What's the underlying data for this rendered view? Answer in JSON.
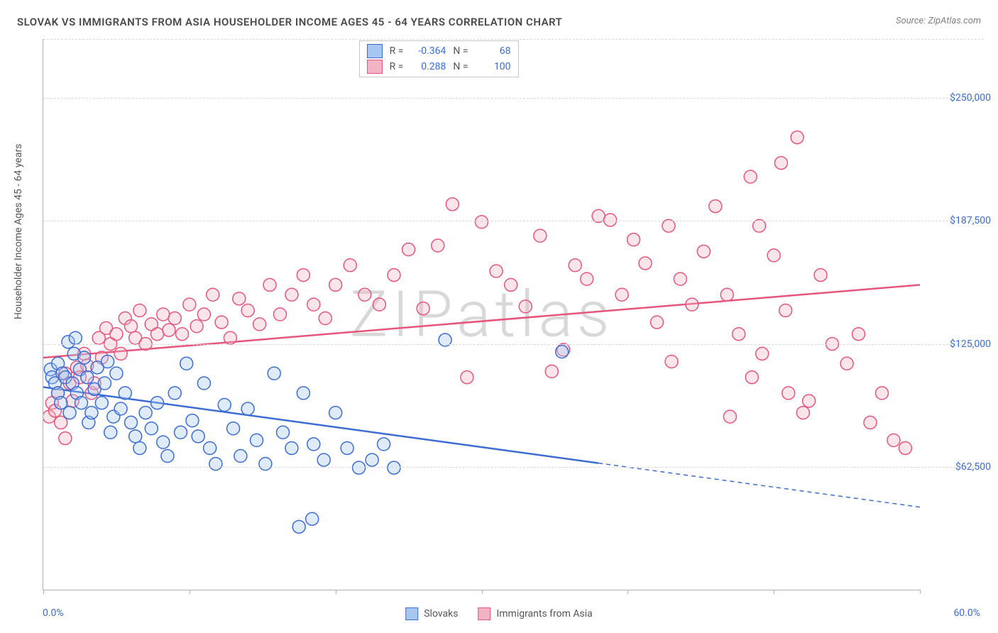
{
  "title": "SLOVAK VS IMMIGRANTS FROM ASIA HOUSEHOLDER INCOME AGES 45 - 64 YEARS CORRELATION CHART",
  "source_prefix": "Source: ",
  "source": "ZipAtlas.com",
  "watermark": "ZIPatlas",
  "y_axis_label": "Householder Income Ages 45 - 64 years",
  "chart": {
    "type": "scatter",
    "background_color": "#ffffff",
    "grid_color": "#d8d8d8",
    "axis_color": "#b0b0b0",
    "x_range": [
      0,
      60
    ],
    "y_range": [
      0,
      280000
    ],
    "x_ticks": [
      0,
      10,
      20,
      30,
      40,
      50,
      60
    ],
    "x_label_min": "0.0%",
    "x_label_max": "60.0%",
    "y_gridlines": [
      62500,
      125000,
      187500,
      250000
    ],
    "y_tick_labels": [
      "$62,500",
      "$125,000",
      "$187,500",
      "$250,000"
    ],
    "tick_label_color": "#3b6dd4",
    "axis_label_color": "#555555",
    "axis_label_fontsize": 14,
    "marker_radius": 9,
    "marker_fill_opacity": 0.35,
    "marker_stroke_width": 1.5,
    "trend_line_width": 2.5
  },
  "series": [
    {
      "key": "slovaks",
      "label": "Slovaks",
      "fill": "#a7c7f0",
      "stroke": "#3b6dd4",
      "R": "-0.364",
      "N": "68",
      "trend": {
        "x1": 0,
        "y1": 103000,
        "x2": 60,
        "y2": 42000,
        "solid_until_x": 38
      },
      "points": [
        [
          0.5,
          112000
        ],
        [
          0.6,
          108000
        ],
        [
          0.8,
          105000
        ],
        [
          1.0,
          115000
        ],
        [
          1.0,
          100000
        ],
        [
          1.2,
          95000
        ],
        [
          1.3,
          110000
        ],
        [
          1.5,
          108000
        ],
        [
          1.7,
          126000
        ],
        [
          1.8,
          90000
        ],
        [
          2.0,
          105000
        ],
        [
          2.1,
          120000
        ],
        [
          2.2,
          128000
        ],
        [
          2.3,
          100000
        ],
        [
          2.5,
          112000
        ],
        [
          2.6,
          95000
        ],
        [
          2.8,
          118000
        ],
        [
          3.0,
          108000
        ],
        [
          3.1,
          85000
        ],
        [
          3.3,
          90000
        ],
        [
          3.5,
          102000
        ],
        [
          3.7,
          113000
        ],
        [
          4.0,
          95000
        ],
        [
          4.2,
          105000
        ],
        [
          4.4,
          116000
        ],
        [
          4.6,
          80000
        ],
        [
          4.8,
          88000
        ],
        [
          5.0,
          110000
        ],
        [
          5.3,
          92000
        ],
        [
          5.6,
          100000
        ],
        [
          6.0,
          85000
        ],
        [
          6.3,
          78000
        ],
        [
          6.6,
          72000
        ],
        [
          7.0,
          90000
        ],
        [
          7.4,
          82000
        ],
        [
          7.8,
          95000
        ],
        [
          8.2,
          75000
        ],
        [
          8.5,
          68000
        ],
        [
          9.0,
          100000
        ],
        [
          9.4,
          80000
        ],
        [
          9.8,
          115000
        ],
        [
          10.2,
          86000
        ],
        [
          10.6,
          78000
        ],
        [
          11.0,
          105000
        ],
        [
          11.4,
          72000
        ],
        [
          11.8,
          64000
        ],
        [
          12.4,
          94000
        ],
        [
          13.0,
          82000
        ],
        [
          13.5,
          68000
        ],
        [
          14.0,
          92000
        ],
        [
          14.6,
          76000
        ],
        [
          15.2,
          64000
        ],
        [
          15.8,
          110000
        ],
        [
          16.4,
          80000
        ],
        [
          17.0,
          72000
        ],
        [
          17.8,
          100000
        ],
        [
          18.5,
          74000
        ],
        [
          19.2,
          66000
        ],
        [
          20.0,
          90000
        ],
        [
          20.8,
          72000
        ],
        [
          17.5,
          32000
        ],
        [
          18.4,
          36000
        ],
        [
          21.6,
          62000
        ],
        [
          22.5,
          66000
        ],
        [
          23.3,
          74000
        ],
        [
          24.0,
          62000
        ],
        [
          27.5,
          127000
        ],
        [
          35.5,
          121000
        ]
      ]
    },
    {
      "key": "asia",
      "label": "Immigrants from Asia",
      "fill": "#f2b4c4",
      "stroke": "#e6567c",
      "R": "0.288",
      "N": "100",
      "trend": {
        "x1": 0,
        "y1": 118000,
        "x2": 60,
        "y2": 155000,
        "solid_until_x": 60
      },
      "points": [
        [
          0.4,
          88000
        ],
        [
          0.6,
          95000
        ],
        [
          0.8,
          91000
        ],
        [
          1.0,
          100000
        ],
        [
          1.2,
          85000
        ],
        [
          1.5,
          110000
        ],
        [
          1.5,
          77000
        ],
        [
          1.8,
          105000
        ],
        [
          2.0,
          96000
        ],
        [
          2.3,
          113000
        ],
        [
          2.5,
          108000
        ],
        [
          2.8,
          120000
        ],
        [
          3.0,
          114000
        ],
        [
          3.3,
          100000
        ],
        [
          3.5,
          105000
        ],
        [
          3.8,
          128000
        ],
        [
          4.0,
          118000
        ],
        [
          4.3,
          133000
        ],
        [
          4.6,
          125000
        ],
        [
          5.0,
          130000
        ],
        [
          5.3,
          120000
        ],
        [
          5.6,
          138000
        ],
        [
          6.0,
          134000
        ],
        [
          6.3,
          128000
        ],
        [
          6.6,
          142000
        ],
        [
          7.0,
          125000
        ],
        [
          7.4,
          135000
        ],
        [
          7.8,
          130000
        ],
        [
          8.2,
          140000
        ],
        [
          8.6,
          132000
        ],
        [
          9.0,
          138000
        ],
        [
          9.5,
          130000
        ],
        [
          10.0,
          145000
        ],
        [
          10.5,
          134000
        ],
        [
          11.0,
          140000
        ],
        [
          11.6,
          150000
        ],
        [
          12.2,
          136000
        ],
        [
          12.8,
          128000
        ],
        [
          13.4,
          148000
        ],
        [
          14.0,
          142000
        ],
        [
          14.8,
          135000
        ],
        [
          15.5,
          155000
        ],
        [
          16.2,
          140000
        ],
        [
          17.0,
          150000
        ],
        [
          17.8,
          160000
        ],
        [
          18.5,
          145000
        ],
        [
          19.3,
          138000
        ],
        [
          20.0,
          155000
        ],
        [
          21.0,
          165000
        ],
        [
          22.0,
          150000
        ],
        [
          23.0,
          145000
        ],
        [
          24.0,
          160000
        ],
        [
          25.0,
          173000
        ],
        [
          26.0,
          143000
        ],
        [
          27.0,
          175000
        ],
        [
          28.0,
          196000
        ],
        [
          29.0,
          108000
        ],
        [
          30.0,
          187000
        ],
        [
          31.0,
          162000
        ],
        [
          32.0,
          155000
        ],
        [
          33.0,
          144000
        ],
        [
          34.0,
          180000
        ],
        [
          34.8,
          111000
        ],
        [
          35.6,
          122000
        ],
        [
          36.4,
          165000
        ],
        [
          37.2,
          158000
        ],
        [
          38.0,
          190000
        ],
        [
          38.8,
          188000
        ],
        [
          39.6,
          150000
        ],
        [
          40.4,
          178000
        ],
        [
          41.2,
          166000
        ],
        [
          42.0,
          136000
        ],
        [
          42.8,
          185000
        ],
        [
          43.6,
          158000
        ],
        [
          44.4,
          145000
        ],
        [
          45.2,
          172000
        ],
        [
          46.0,
          195000
        ],
        [
          46.8,
          150000
        ],
        [
          47.6,
          130000
        ],
        [
          48.4,
          210000
        ],
        [
          49.2,
          120000
        ],
        [
          50.0,
          170000
        ],
        [
          50.8,
          142000
        ],
        [
          51.6,
          230000
        ],
        [
          52.4,
          96000
        ],
        [
          53.2,
          160000
        ],
        [
          47.0,
          88000
        ],
        [
          48.5,
          108000
        ],
        [
          55.0,
          115000
        ],
        [
          55.8,
          130000
        ],
        [
          56.6,
          85000
        ],
        [
          57.4,
          100000
        ],
        [
          58.2,
          76000
        ],
        [
          59.0,
          72000
        ],
        [
          51.0,
          100000
        ],
        [
          52.0,
          90000
        ],
        [
          54.0,
          125000
        ],
        [
          49.0,
          185000
        ],
        [
          50.5,
          217000
        ],
        [
          43.0,
          116000
        ]
      ]
    }
  ]
}
